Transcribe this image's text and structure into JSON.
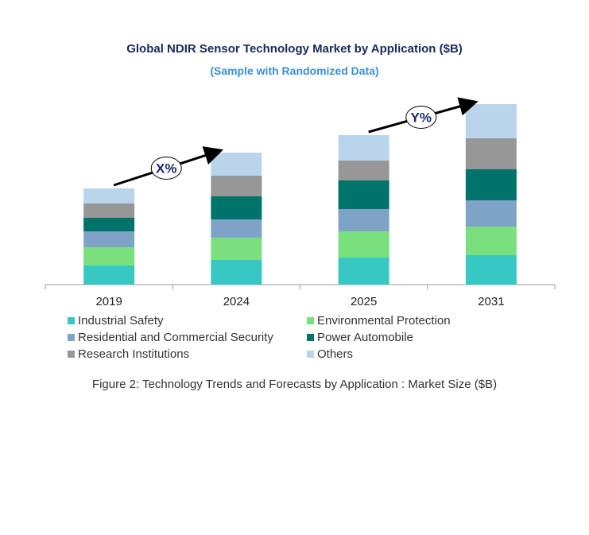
{
  "title": "Global NDIR Sensor Technology Market by Application ($B)",
  "subtitle": "(Sample with Randomized Data)",
  "caption": "Figure 2: Technology  Trends  and Forecasts by Application : Market Size ($B)",
  "chart_data": {
    "type": "bar",
    "stacked": true,
    "title": "Global NDIR Sensor Technology Market by Application ($B)",
    "categories": [
      "2019",
      "2024",
      "2025",
      "2031"
    ],
    "ylim": [
      0,
      25
    ],
    "y_axis_visible": false,
    "grid": false,
    "legend_placement": "bottom",
    "series": [
      {
        "name": "Industrial Safety",
        "color": "#38c8c4",
        "values": [
          2.4,
          3.1,
          3.4,
          3.7
        ]
      },
      {
        "name": "Environmental Protection",
        "color": "#7ae07e",
        "values": [
          2.3,
          2.8,
          3.3,
          3.6
        ]
      },
      {
        "name": "Residential and Commercial Security",
        "color": "#7ea3c7",
        "values": [
          2.0,
          2.3,
          2.8,
          3.3
        ]
      },
      {
        "name": "Power Automobile",
        "color": "#00736a",
        "values": [
          1.7,
          2.9,
          3.6,
          3.9
        ]
      },
      {
        "name": "Research Institutions",
        "color": "#979797",
        "values": [
          1.8,
          2.6,
          2.5,
          3.9
        ]
      },
      {
        "name": "Others",
        "color": "#bad4ec",
        "values": [
          1.9,
          2.9,
          3.2,
          4.3
        ]
      }
    ],
    "annotations": [
      {
        "text": "X%",
        "from": "2019",
        "to": "2024"
      },
      {
        "text": "Y%",
        "from": "2025",
        "to": "2031"
      }
    ]
  }
}
